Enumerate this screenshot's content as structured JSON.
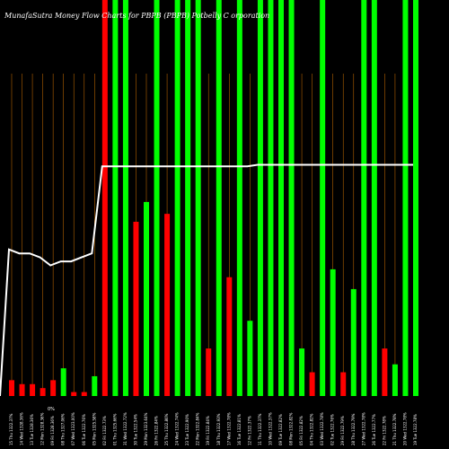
{
  "chart_data": {
    "type": "bar",
    "title": "MunafaSutra  Money Flow  Charts for PBPB                                    (PBPB) Potbelly C                                            orporation",
    "ylim": [
      0,
      100
    ],
    "ref_label": "0%",
    "categories": [
      "Thu 15 Feb 2024",
      "Wed 14 Feb 2024",
      "Tue 13 Feb 2024",
      "Mon 12 Feb 2024",
      "Fri 09 Feb 2024",
      "Thu 08 Feb 2024",
      "Wed 07 Feb 2024",
      "Tue 06 Feb 2024",
      "Mon 05 Feb 2024",
      "Fri 02 Feb 2024",
      "Thu 01 Feb 2024",
      "Wed 31 Jan 2024",
      "Tue 30 Jan 2024",
      "Mon 29 Jan 2024",
      "Fri 26 Jan 2024",
      "Thu 25 Jan 2024",
      "Wed 24 Jan 2024",
      "Tue 23 Jan 2024",
      "Mon 22 Jan 2024",
      "Fri 19 Jan 2024",
      "Thu 18 Jan 2024",
      "Wed 17 Jan 2024",
      "Tue 16 Jan 2024",
      "Fri 12 Jan 2024",
      "Thu 11 Jan 2024",
      "Wed 10 Jan 2024",
      "Tue 09 Jan 2024",
      "Mon 08 Jan 2024",
      "Fri 05 Jan 2024",
      "Thu 04 Jan 2024",
      "Wed 03 Jan 2024",
      "Tue 02 Jan 2024",
      "Fri 29 Dec 2023",
      "Thu 28 Dec 2023",
      "Wed 27 Dec 2023",
      "Tue 26 Dec 2023",
      "Fri 22 Dec 2023",
      "Thu 21 Dec 2023",
      "Wed 20 Dec 2023",
      "Tue 19 Dec 2023"
    ],
    "tick_labels": [
      "15 Thu 1322.37%",
      "14 Wed 1328.36%",
      "13 Tue 1328.36%",
      "12 Mon 1328.36%",
      "09 Fri 1328.36%",
      "08 Thu 1327.06%",
      "07 Wed 1323.00%",
      "06 Tue 1322.76%",
      "05 Mon 1325.58%",
      "02 Fri 1322.73%",
      "01 Thu 1325.66%",
      "31 Wed 1322.72%",
      "30 Tue 1322.54%",
      "29 Mon 1323.64%",
      "26 Fri 1322.84%",
      "25 Thu 1322.86%",
      "24 Wed 1322.74%",
      "23 Tue 1322.90%",
      "22 Mon 1322.84%",
      "19 Fri 1322.84%",
      "18 Thu 1322.93%",
      "17 Wed 1322.78%",
      "16 Tue 1322.81%",
      "12 Fri 1322.37%",
      "11 Thu 1322.37%",
      "10 Wed 1322.37%",
      "09 Tue 1322.82%",
      "08 Mon 1322.82%",
      "05 Fri 1322.82%",
      "04 Thu 1322.82%",
      "03 Wed 1322.78%",
      "02 Tue 1322.76%",
      "29 Fri 1322.79%",
      "28 Thu 1322.79%",
      "27 Wed 1322.78%",
      "26 Tue 1322.77%",
      "22 Fri 1322.78%",
      "21 Thu 1322.78%",
      "20 Wed 1322.78%",
      "19 Tue 1322.78%"
    ],
    "series": [
      {
        "values": [
          4,
          3,
          3,
          2,
          4,
          7,
          1,
          1,
          5,
          100,
          100,
          100,
          44,
          49,
          100,
          46,
          100,
          100,
          100,
          12,
          100,
          30,
          100,
          19,
          100,
          100,
          100,
          100,
          12,
          6,
          100,
          32,
          6,
          27,
          100,
          100,
          12,
          8,
          100,
          100
        ],
        "colors": [
          "red",
          "red",
          "red",
          "red",
          "red",
          "green",
          "red",
          "red",
          "green",
          "red",
          "green",
          "green",
          "red",
          "green",
          "green",
          "red",
          "green",
          "green",
          "green",
          "red",
          "green",
          "red",
          "green",
          "green",
          "green",
          "green",
          "green",
          "green",
          "green",
          "red",
          "green",
          "green",
          "red",
          "green",
          "green",
          "green",
          "red",
          "green",
          "green",
          "green"
        ]
      },
      {
        "name": "",
        "values": [
          37,
          36,
          36,
          35,
          33,
          34,
          34,
          35,
          36,
          58,
          58,
          58,
          58,
          58,
          58,
          58,
          58,
          58,
          58,
          58,
          58,
          58,
          58,
          58,
          58.4,
          58.4,
          58.4,
          58.4,
          58.4,
          58.4,
          58.4,
          58.4,
          58.4,
          58.4,
          58.4,
          58.4,
          58.4,
          58.4,
          58.4,
          58.4
        ]
      }
    ],
    "colors": {
      "red": "#ff0000",
      "green": "#00ff00",
      "line": "#ffffff",
      "grid": "#ff8c00"
    }
  }
}
